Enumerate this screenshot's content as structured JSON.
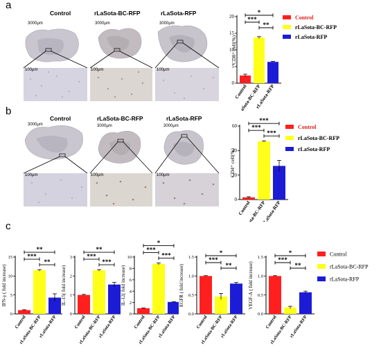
{
  "panels": {
    "a": {
      "letter": "a",
      "columns": [
        "Control",
        "rLaSota-BC-RFP",
        "rLaSota-RFP"
      ],
      "scale_overview": "3000μm",
      "scale_zoom": "100μm"
    },
    "b": {
      "letter": "b",
      "columns": [
        "Control",
        "rLaSota-BC-RFP",
        "rLaSota-RFP"
      ],
      "scale_overview": "3000μm",
      "scale_zoom": "100μm"
    },
    "c": {
      "letter": "c"
    }
  },
  "colors": {
    "control": "#ff1f1f",
    "bc": "#ffff1a",
    "rfp": "#1c1cd6"
  },
  "chart_data": [
    {
      "id": "cd8",
      "type": "bar",
      "categories": [
        "Control",
        "rLaSota-BC-RFP",
        "rLaSota-RFP"
      ],
      "values": [
        2.3,
        13.7,
        6.4
      ],
      "errors": [
        0.4,
        0.3,
        0.15
      ],
      "ylabel": "CD8⁺ cell(%)",
      "ylim": [
        0,
        20
      ],
      "ticks": [
        0,
        5,
        10,
        15,
        20
      ],
      "legend": [
        "Control",
        "rLaSota-BC-RFP",
        "rLaSota-RFP"
      ],
      "sig": [
        {
          "from": 0,
          "to": 1,
          "label": "***"
        },
        {
          "from": 1,
          "to": 2,
          "label": "**"
        },
        {
          "from": 0,
          "to": 2,
          "label": "*"
        }
      ]
    },
    {
      "id": "cd4",
      "type": "bar",
      "categories": [
        "Control",
        "rLaSota-BC-RFP",
        "rLaSota-RFP"
      ],
      "values": [
        1.8,
        47.5,
        27.5
      ],
      "errors": [
        0.5,
        0.5,
        4.5
      ],
      "ylabel": "CD4⁺ cell(%)",
      "ylim": [
        0,
        60
      ],
      "ticks": [
        0,
        20,
        40,
        60
      ],
      "legend": [
        "Control",
        "rLaSota-BC-RFP",
        "rLaSota-RFP"
      ],
      "sig": [
        {
          "from": 0,
          "to": 1,
          "label": "***"
        },
        {
          "from": 1,
          "to": 2,
          "label": "***"
        },
        {
          "from": 0,
          "to": 2,
          "label": "***"
        }
      ]
    },
    {
      "id": "ifng",
      "type": "bar",
      "categories": [
        "Control",
        "rLaSota-BC-RFP",
        "rLaSota-RFP"
      ],
      "values": [
        1.0,
        11.5,
        4.3
      ],
      "errors": [
        0.1,
        0.2,
        1.0
      ],
      "ylabel": "IFN-γ ( fold increase)",
      "ylim": [
        0,
        15
      ],
      "ticks": [
        0,
        5,
        10,
        15
      ],
      "sig": [
        {
          "from": 0,
          "to": 1,
          "label": "***"
        },
        {
          "from": 1,
          "to": 2,
          "label": "**"
        },
        {
          "from": 0,
          "to": 2,
          "label": "**"
        }
      ]
    },
    {
      "id": "il15",
      "type": "bar",
      "categories": [
        "Control",
        "rLaSota-BC-RFP",
        "rLaSota-RFP"
      ],
      "values": [
        1.0,
        2.3,
        1.55
      ],
      "errors": [
        0.03,
        0.04,
        0.12
      ],
      "ylabel": "IL-15( fold increase)",
      "ylim": [
        0,
        3
      ],
      "ticks": [
        0,
        1,
        2,
        3
      ],
      "sig": [
        {
          "from": 0,
          "to": 1,
          "label": "***"
        },
        {
          "from": 1,
          "to": 2,
          "label": "***"
        },
        {
          "from": 0,
          "to": 2,
          "label": "**"
        }
      ]
    },
    {
      "id": "il12",
      "type": "bar",
      "categories": [
        "Control",
        "rLaSota-BC-RFP",
        "rLaSota-RFP"
      ],
      "values": [
        1.0,
        8.8,
        2.1
      ],
      "errors": [
        0.05,
        0.15,
        0.05
      ],
      "ylabel": "IL-12( fold increase)",
      "ylim": [
        0,
        10
      ],
      "ticks": [
        0,
        2,
        4,
        6,
        8,
        10
      ],
      "sig": [
        {
          "from": 0,
          "to": 1,
          "label": "***"
        },
        {
          "from": 1,
          "to": 2,
          "label": "***"
        },
        {
          "from": 0,
          "to": 2,
          "label": "*"
        }
      ]
    },
    {
      "id": "egfr",
      "type": "bar",
      "categories": [
        "Control",
        "rLaSota-BC-RFP",
        "rLaSota-RFP"
      ],
      "values": [
        1.0,
        0.46,
        0.8
      ],
      "errors": [
        0.01,
        0.08,
        0.03
      ],
      "ylabel": "EGFR ( fold increase)",
      "ylim": [
        0,
        1.5
      ],
      "ticks": [
        0,
        0.5,
        1.0,
        1.5
      ],
      "tick_decimals": 1,
      "sig": [
        {
          "from": 0,
          "to": 1,
          "label": "***"
        },
        {
          "from": 1,
          "to": 2,
          "label": "**"
        },
        {
          "from": 0,
          "to": 2,
          "label": "*"
        }
      ]
    },
    {
      "id": "vegfa",
      "type": "bar",
      "categories": [
        "Control",
        "rLaSota-BC-RFP",
        "rLaSota-RFP"
      ],
      "values": [
        1.0,
        0.17,
        0.57
      ],
      "errors": [
        0.01,
        0.03,
        0.03
      ],
      "ylabel": "VEGF-A ( fold increase)",
      "ylim": [
        0,
        1.5
      ],
      "ticks": [
        0,
        0.5,
        1.0,
        1.5
      ],
      "tick_decimals": 1,
      "sig": [
        {
          "from": 0,
          "to": 1,
          "label": "***"
        },
        {
          "from": 1,
          "to": 2,
          "label": "**"
        },
        {
          "from": 0,
          "to": 2,
          "label": "*"
        }
      ]
    }
  ],
  "legend_c": [
    "Control",
    "rLaSota-BC-RFP",
    "rLaSota-RFP"
  ]
}
